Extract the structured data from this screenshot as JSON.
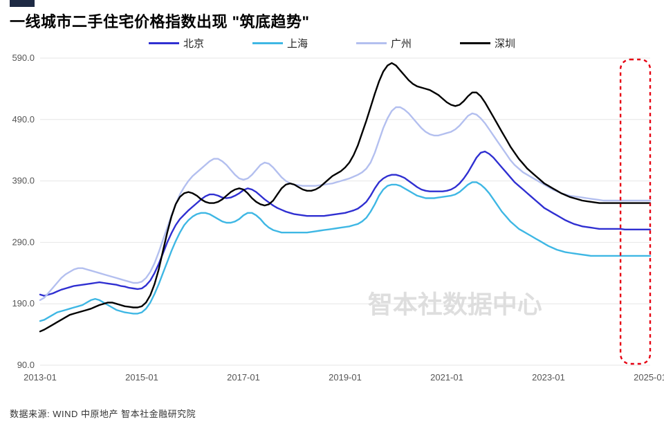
{
  "title": "一线城市二手住宅价格指数出现 \"筑底趋势\"",
  "source_label": "数据来源: WIND 中原地产 智本社金融研究院",
  "watermark_text": "智本社数据中心",
  "chart": {
    "type": "line",
    "background_color": "#ffffff",
    "grid_color": "#e6e6e6",
    "axis_text_color": "#555555",
    "axis_fontsize": 13,
    "line_width": 2.4,
    "ylim": [
      90,
      590
    ],
    "ytick_step": 100,
    "yticks": [
      90.0,
      190.0,
      290.0,
      390.0,
      490.0,
      590.0
    ],
    "xlabels": [
      "2013-01",
      "2015-01",
      "2017-01",
      "2019-01",
      "2021-01",
      "2023-01",
      "2025-01"
    ],
    "xlim_index": [
      0,
      144
    ],
    "highlight_box": {
      "x_start_index": 137,
      "x_end_index": 144,
      "stroke": "#e60012",
      "dash": "5,5",
      "rx": 14
    },
    "series": [
      {
        "name": "北京",
        "color": "#2f2fd1",
        "data": [
          205,
          203,
          205,
          207,
          210,
          213,
          215,
          217,
          219,
          220,
          221,
          222,
          223,
          224,
          225,
          224,
          223,
          222,
          221,
          219,
          218,
          216,
          215,
          214,
          215,
          220,
          228,
          240,
          255,
          272,
          290,
          305,
          318,
          328,
          335,
          342,
          348,
          354,
          360,
          365,
          368,
          368,
          366,
          363,
          362,
          363,
          366,
          370,
          375,
          378,
          376,
          372,
          366,
          360,
          355,
          350,
          346,
          343,
          340,
          338,
          336,
          335,
          334,
          333,
          333,
          333,
          333,
          333,
          334,
          335,
          336,
          337,
          338,
          340,
          342,
          345,
          350,
          356,
          366,
          378,
          388,
          394,
          398,
          400,
          400,
          398,
          395,
          390,
          385,
          380,
          376,
          374,
          373,
          373,
          373,
          373,
          374,
          376,
          380,
          386,
          394,
          404,
          416,
          428,
          436,
          438,
          434,
          428,
          420,
          412,
          404,
          396,
          388,
          382,
          376,
          370,
          364,
          358,
          352,
          346,
          342,
          338,
          334,
          330,
          326,
          323,
          320,
          318,
          316,
          315,
          314,
          313,
          312,
          312,
          312,
          312,
          312,
          312,
          311,
          311,
          311,
          311,
          311,
          311,
          311
        ]
      },
      {
        "name": "上海",
        "color": "#3eb7e4",
        "data": [
          162,
          164,
          168,
          172,
          176,
          178,
          180,
          182,
          184,
          186,
          188,
          192,
          196,
          198,
          196,
          192,
          188,
          184,
          180,
          178,
          176,
          175,
          174,
          174,
          176,
          182,
          192,
          206,
          222,
          240,
          258,
          276,
          292,
          306,
          318,
          326,
          332,
          336,
          338,
          338,
          336,
          332,
          328,
          324,
          322,
          322,
          324,
          328,
          334,
          338,
          338,
          334,
          328,
          320,
          314,
          310,
          308,
          306,
          306,
          306,
          306,
          306,
          306,
          306,
          307,
          308,
          309,
          310,
          311,
          312,
          313,
          314,
          315,
          316,
          318,
          320,
          324,
          330,
          340,
          352,
          366,
          376,
          382,
          384,
          384,
          382,
          378,
          374,
          370,
          366,
          364,
          362,
          362,
          362,
          363,
          364,
          365,
          366,
          368,
          372,
          378,
          384,
          388,
          388,
          384,
          378,
          370,
          360,
          350,
          340,
          332,
          324,
          318,
          312,
          308,
          304,
          300,
          296,
          292,
          288,
          284,
          281,
          278,
          276,
          274,
          273,
          272,
          271,
          270,
          269,
          268,
          268,
          268,
          268,
          268,
          268,
          268,
          268,
          268,
          268,
          268,
          268,
          268,
          268,
          268
        ]
      },
      {
        "name": "广州",
        "color": "#b3bfef",
        "data": [
          196,
          200,
          208,
          216,
          224,
          232,
          238,
          242,
          246,
          248,
          248,
          246,
          244,
          242,
          240,
          238,
          236,
          234,
          232,
          230,
          228,
          226,
          224,
          224,
          226,
          232,
          242,
          256,
          274,
          294,
          314,
          334,
          352,
          368,
          380,
          390,
          398,
          404,
          410,
          416,
          422,
          426,
          426,
          422,
          416,
          408,
          400,
          394,
          392,
          394,
          400,
          408,
          416,
          420,
          418,
          412,
          404,
          396,
          390,
          386,
          384,
          383,
          382,
          382,
          382,
          382,
          383,
          384,
          385,
          386,
          388,
          390,
          392,
          394,
          397,
          400,
          404,
          410,
          420,
          436,
          456,
          476,
          492,
          504,
          510,
          510,
          506,
          500,
          492,
          484,
          476,
          470,
          466,
          464,
          464,
          466,
          468,
          470,
          474,
          480,
          488,
          496,
          500,
          498,
          492,
          484,
          474,
          464,
          454,
          444,
          434,
          424,
          416,
          410,
          404,
          400,
          396,
          392,
          388,
          384,
          380,
          376,
          373,
          370,
          368,
          366,
          365,
          364,
          363,
          362,
          361,
          360,
          359,
          358,
          358,
          358,
          358,
          358,
          358,
          358,
          358,
          358,
          358,
          358,
          358
        ]
      },
      {
        "name": "深圳",
        "color": "#000000",
        "data": [
          145,
          148,
          152,
          156,
          160,
          164,
          168,
          172,
          174,
          176,
          178,
          180,
          182,
          185,
          188,
          190,
          192,
          192,
          190,
          188,
          186,
          185,
          184,
          184,
          186,
          192,
          204,
          222,
          246,
          276,
          306,
          332,
          352,
          364,
          370,
          372,
          370,
          366,
          360,
          356,
          354,
          354,
          356,
          360,
          366,
          372,
          376,
          378,
          376,
          370,
          362,
          356,
          352,
          350,
          352,
          358,
          368,
          378,
          384,
          386,
          384,
          380,
          376,
          374,
          374,
          376,
          380,
          386,
          392,
          398,
          402,
          406,
          412,
          420,
          432,
          448,
          468,
          488,
          510,
          532,
          552,
          568,
          578,
          582,
          578,
          570,
          562,
          554,
          548,
          544,
          542,
          540,
          538,
          534,
          530,
          524,
          518,
          514,
          512,
          514,
          520,
          528,
          534,
          534,
          528,
          518,
          506,
          494,
          482,
          470,
          458,
          446,
          436,
          426,
          418,
          410,
          404,
          398,
          392,
          386,
          382,
          378,
          374,
          370,
          367,
          364,
          362,
          360,
          358,
          357,
          356,
          355,
          354,
          354,
          354,
          354,
          354,
          354,
          354,
          354,
          354,
          354,
          354,
          354,
          354
        ]
      }
    ]
  },
  "legend_labels": [
    "北京",
    "上海",
    "广州",
    "深圳"
  ]
}
